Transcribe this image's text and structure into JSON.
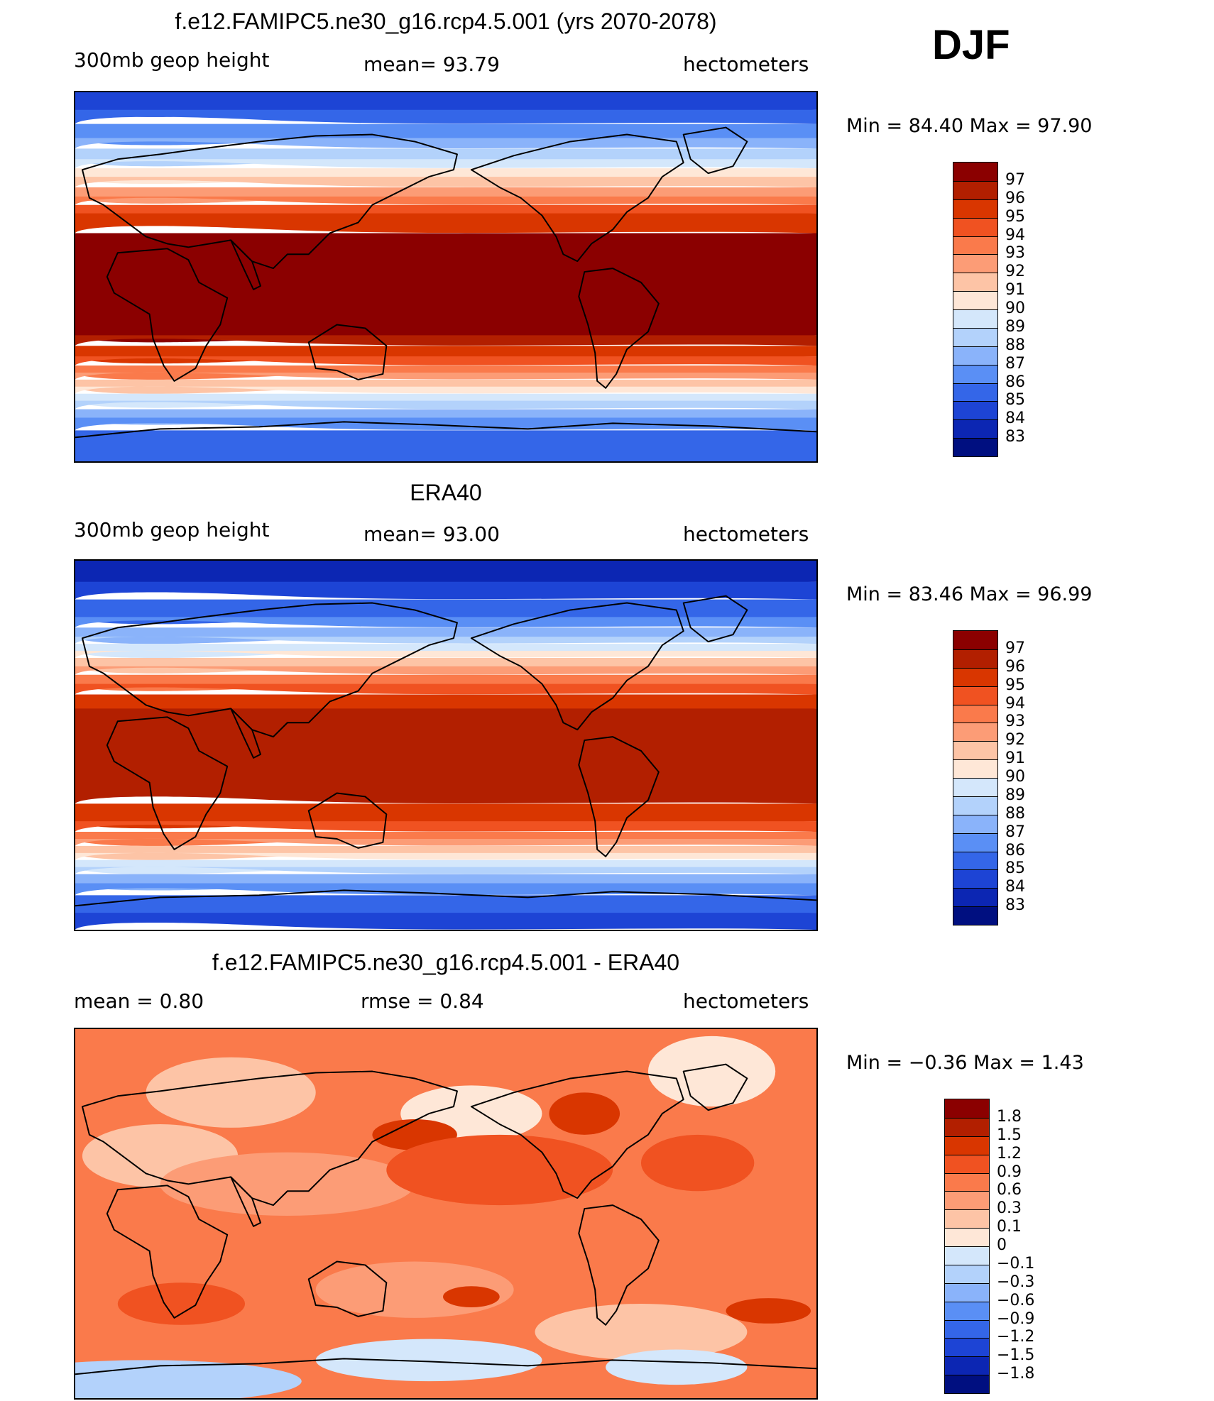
{
  "season": "DJF",
  "panels": [
    {
      "title": "f.e12.FAMIPC5.ne30_g16.rcp4.5.001 (yrs 2070-2078)",
      "left_label": "300mb  geop  height",
      "center_label": "mean=   93.79",
      "right_label": "hectometers",
      "minmax": "Min  =    84.40  Max  =    97.90",
      "colorbar": {
        "labels": [
          "97",
          "96",
          "95",
          "94",
          "93",
          "92",
          "91",
          "90",
          "89",
          "88",
          "87",
          "86",
          "85",
          "84",
          "83"
        ],
        "colors": [
          "#8b0000",
          "#b21f00",
          "#d93600",
          "#f05221",
          "#fa7a4b",
          "#fc9c76",
          "#fdc4a6",
          "#fee7d7",
          "#d4e7fb",
          "#b3d2fb",
          "#8ab3fa",
          "#5a8ff5",
          "#3466e8",
          "#1d44d5",
          "#0c26b3",
          "#000f80"
        ]
      },
      "map_style": "model"
    },
    {
      "title": "ERA40",
      "left_label": "300mb  geop  height",
      "center_label": "mean=   93.00",
      "right_label": "hectometers",
      "minmax": "Min  =    83.46  Max  =    96.99",
      "colorbar": {
        "labels": [
          "97",
          "96",
          "95",
          "94",
          "93",
          "92",
          "91",
          "90",
          "89",
          "88",
          "87",
          "86",
          "85",
          "84",
          "83"
        ],
        "colors": [
          "#8b0000",
          "#b21f00",
          "#d93600",
          "#f05221",
          "#fa7a4b",
          "#fc9c76",
          "#fdc4a6",
          "#fee7d7",
          "#d4e7fb",
          "#b3d2fb",
          "#8ab3fa",
          "#5a8ff5",
          "#3466e8",
          "#1d44d5",
          "#0c26b3",
          "#000f80"
        ]
      },
      "map_style": "obs"
    },
    {
      "title": "f.e12.FAMIPC5.ne30_g16.rcp4.5.001 - ERA40",
      "left_label": "mean  =     0.80",
      "center_label": "rmse  =     0.84",
      "right_label": "hectometers",
      "minmax": "Min  =   −0.36  Max  =      1.43",
      "colorbar": {
        "labels": [
          "1.8",
          "1.5",
          "1.2",
          "0.9",
          "0.6",
          "0.3",
          "0.1",
          "0",
          "−0.1",
          "−0.3",
          "−0.6",
          "−0.9",
          "−1.2",
          "−1.5",
          "−1.8"
        ],
        "colors": [
          "#8b0000",
          "#b21f00",
          "#d93600",
          "#f05221",
          "#fa7a4b",
          "#fc9c76",
          "#fdc4a6",
          "#fee7d7",
          "#d4e7fb",
          "#b3d2fb",
          "#8ab3fa",
          "#5a8ff5",
          "#3466e8",
          "#1d44d5",
          "#0c26b3",
          "#000f80"
        ]
      },
      "map_style": "diff"
    }
  ]
}
